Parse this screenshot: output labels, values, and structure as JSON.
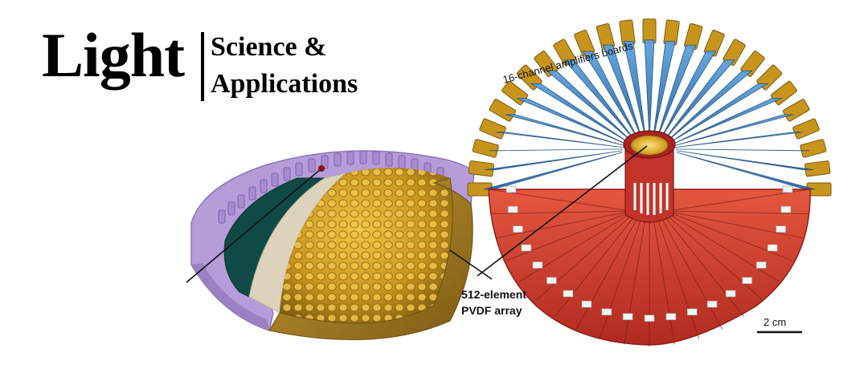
{
  "logo": {
    "word": "Light",
    "subtitle_line1": "Science &",
    "subtitle_line2": "Applications"
  },
  "labels": {
    "amplifiers": "16-channel amplifiers boards",
    "array_line1": "512-element",
    "array_line2": "PVDF array",
    "scale": "2 cm"
  },
  "colors": {
    "gold": "#c89a1c",
    "purple": "#b79bd6",
    "teal": "#0f4a46",
    "blue": "#2c72b8",
    "red": "#cc3b2c",
    "dark_red": "#8e1f1a"
  }
}
